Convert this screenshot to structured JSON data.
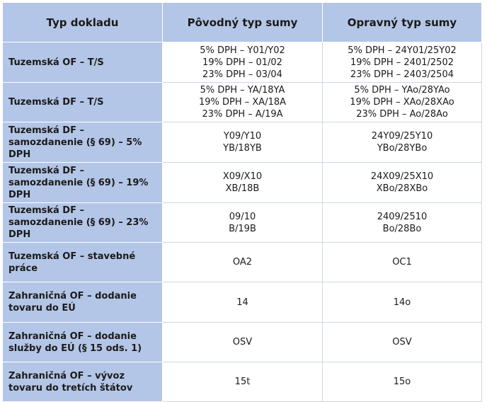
{
  "table": {
    "headers": [
      "Typ dokladu",
      "Pôvodný typ sumy",
      "Opravný typ sumy"
    ],
    "rows": [
      {
        "type": "Tuzemská OF – T/S",
        "original": [
          "5% DPH – Y01/Y02",
          "19% DPH – 01/02",
          "23% DPH – 03/04"
        ],
        "corrective": [
          "5% DPH – 24Y01/25Y02",
          "19% DPH – 2401/2502",
          "23% DPH – 2403/2504"
        ]
      },
      {
        "type": "Tuzemská DF – T/S",
        "original": [
          "5% DPH – YA/18YA",
          "19% DPH – XA/18A",
          "23% DPH – A/19A"
        ],
        "corrective": [
          "5% DPH – YAo/28YAo",
          "19% DPH – XAo/28XAo",
          "23% DPH – Ao/28Ao"
        ]
      },
      {
        "type": "Tuzemská DF – samozdanenie (§ 69) – 5% DPH",
        "original": [
          "Y09/Y10",
          "YB/18YB"
        ],
        "corrective": [
          "24Y09/25Y10",
          "YBo/28YBo"
        ]
      },
      {
        "type": "Tuzemská DF – samozdanenie (§ 69) – 19% DPH",
        "original": [
          "X09/X10",
          "XB/18B"
        ],
        "corrective": [
          "24X09/25X10",
          "XBo/28XBo"
        ]
      },
      {
        "type": "Tuzemská DF – samozdanenie (§ 69) – 23% DPH",
        "original": [
          "09/10",
          "B/19B"
        ],
        "corrective": [
          "2409/2510",
          "Bo/28Bo"
        ]
      },
      {
        "type": "Tuzemská OF – stavebné práce",
        "original": [
          "OA2"
        ],
        "corrective": [
          "OC1"
        ]
      },
      {
        "type": "Zahraničná OF – dodanie tovaru do EÚ",
        "original": [
          "14"
        ],
        "corrective": [
          "14o"
        ]
      },
      {
        "type": "Zahraničná OF – dodanie služby do EÚ (§ 15 ods. 1)",
        "original": [
          "OSV"
        ],
        "corrective": [
          "OSV"
        ]
      },
      {
        "type": "Zahraničná OF – vývoz tovaru do tretích štátov",
        "original": [
          "15t"
        ],
        "corrective": [
          "15o"
        ]
      }
    ]
  }
}
